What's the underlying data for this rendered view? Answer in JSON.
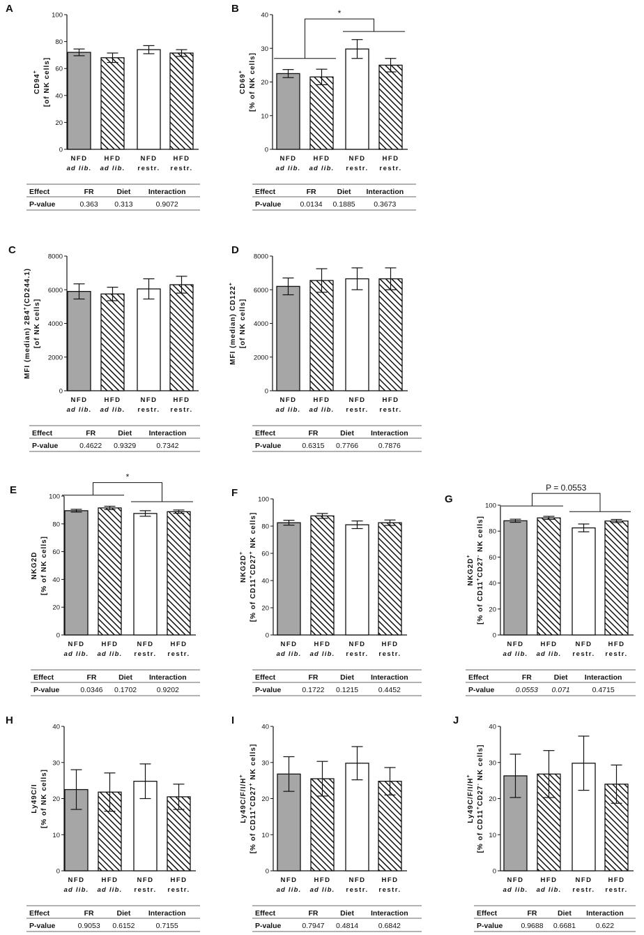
{
  "figure": {
    "bar_colors": {
      "NFD ad lib.": "#a6a6a6",
      "HFD ad lib.": "#a6a6a6",
      "NFD restr.": "#ffffff",
      "HFD restr.": "#ffffff"
    },
    "hatch": [
      false,
      true,
      false,
      true
    ],
    "table_headers": [
      "Effect",
      "FR",
      "Diet",
      "Interaction"
    ],
    "table_row_label": "P-value"
  },
  "chart_data": [
    {
      "id": "A",
      "type": "bar",
      "title": "A",
      "categories": [
        "NFD ad lib.",
        "HFD ad lib.",
        "NFD restr.",
        "HFD restr."
      ],
      "category_lines": [
        [
          "NFD",
          "ad lib."
        ],
        [
          "HFD",
          "ad lib."
        ],
        [
          "NFD",
          "restr."
        ],
        [
          "HFD",
          "restr."
        ]
      ],
      "ylabel": [
        "CD94",
        "[of NK cells]"
      ],
      "ylabel_sup": "+",
      "ylim": [
        0,
        100
      ],
      "yticks": [
        0,
        20,
        40,
        60,
        80,
        100
      ],
      "values": [
        72,
        68,
        74,
        71.5
      ],
      "errors": [
        2.5,
        3.5,
        3,
        2.5
      ],
      "significance": null,
      "pvalues": {
        "FR": "0.363",
        "Diet": "0.313",
        "Interaction": "0.9072"
      }
    },
    {
      "id": "B",
      "type": "bar",
      "title": "B",
      "categories": [
        "NFD ad lib.",
        "HFD ad lib.",
        "NFD restr.",
        "HFD restr."
      ],
      "category_lines": [
        [
          "NFD",
          "ad lib."
        ],
        [
          "HFD",
          "ad lib."
        ],
        [
          "NFD",
          "restr."
        ],
        [
          "HFD",
          "restr."
        ]
      ],
      "ylabel": [
        "CD69",
        "[% of NK cells]"
      ],
      "ylabel_sup": "+",
      "ylim": [
        0,
        40
      ],
      "yticks": [
        0,
        10,
        20,
        30,
        40
      ],
      "values": [
        22.5,
        21.5,
        29.8,
        25
      ],
      "errors": [
        1.2,
        2.3,
        2.8,
        2
      ],
      "significance": "*",
      "pvalues": {
        "FR": "0.0134",
        "Diet": "0.1885",
        "Interaction": "0.3673"
      }
    },
    {
      "id": "C",
      "type": "bar",
      "title": "C",
      "categories": [
        "NFD ad lib.",
        "HFD ad lib.",
        "NFD restr.",
        "HFD restr."
      ],
      "category_lines": [
        [
          "NFD",
          "ad lib."
        ],
        [
          "HFD",
          "ad lib."
        ],
        [
          "NFD",
          "restr."
        ],
        [
          "HFD",
          "restr."
        ]
      ],
      "ylabel": [
        "MFI (median) 2B4",
        "(CD244.1)",
        "[of NK cells]"
      ],
      "ylabel_sup": "+",
      "ylim": [
        0,
        8000
      ],
      "yticks": [
        0,
        2000,
        4000,
        6000,
        8000
      ],
      "values": [
        5900,
        5750,
        6050,
        6300
      ],
      "errors": [
        450,
        400,
        600,
        500
      ],
      "significance": null,
      "pvalues": {
        "FR": "0.4622",
        "Diet": "0.9329",
        "Interaction": "0.7342"
      }
    },
    {
      "id": "D",
      "type": "bar",
      "title": "D",
      "categories": [
        "NFD ad lib.",
        "HFD ad lib.",
        "NFD restr.",
        "HFD restr."
      ],
      "category_lines": [
        [
          "NFD",
          "ad lib."
        ],
        [
          "HFD",
          "ad lib."
        ],
        [
          "NFD",
          "restr."
        ],
        [
          "HFD",
          "restr."
        ]
      ],
      "ylabel": [
        "MFI (median) CD122",
        "[of NK cells]"
      ],
      "ylabel_sup": "+",
      "ylim": [
        0,
        8000
      ],
      "yticks": [
        0,
        2000,
        4000,
        6000,
        8000
      ],
      "values": [
        6200,
        6550,
        6650,
        6650
      ],
      "errors": [
        500,
        700,
        650,
        650
      ],
      "significance": null,
      "pvalues": {
        "FR": "0.6315",
        "Diet": "0.7766",
        "Interaction": "0.7876"
      }
    },
    {
      "id": "E",
      "type": "bar",
      "title": "E",
      "categories": [
        "NFD ad lib.",
        "HFD ad lib.",
        "NFD restr.",
        "HFD restr."
      ],
      "category_lines": [
        [
          "NFD",
          "ad lib."
        ],
        [
          "HFD",
          "ad lib."
        ],
        [
          "NFD",
          "restr."
        ],
        [
          "HFD",
          "restr."
        ]
      ],
      "ylabel": [
        "NKG2D",
        "[% of NK cells]"
      ],
      "ylabel_sup": "",
      "ylim": [
        0,
        100
      ],
      "yticks": [
        0,
        20,
        40,
        60,
        80,
        100
      ],
      "values": [
        89.5,
        91.5,
        87.5,
        88.8
      ],
      "errors": [
        1,
        1.2,
        2,
        1.2
      ],
      "significance": "*",
      "pvalues": {
        "FR": "0.0346",
        "Diet": "0.1702",
        "Interaction": "0.9202"
      }
    },
    {
      "id": "F",
      "type": "bar",
      "title": "F",
      "categories": [
        "NFD ad lib.",
        "HFD ad lib.",
        "NFD restr.",
        "HFD restr."
      ],
      "category_lines": [
        [
          "NFD",
          "ad lib."
        ],
        [
          "HFD",
          "ad lib."
        ],
        [
          "NFD",
          "restr."
        ],
        [
          "HFD",
          "restr."
        ]
      ],
      "ylabel": [
        "NKG2D",
        "[% of CD11",
        "CD27",
        " NK cells]"
      ],
      "ylabel_sup": "+",
      "ylim": [
        0,
        100
      ],
      "yticks": [
        0,
        20,
        40,
        60,
        80,
        100
      ],
      "values": [
        82.5,
        87.5,
        81,
        82.5
      ],
      "errors": [
        1.8,
        1.8,
        2.8,
        2
      ],
      "significance": null,
      "pvalues": {
        "FR": "0.1722",
        "Diet": "0.1215",
        "Interaction": "0.4452"
      }
    },
    {
      "id": "G",
      "type": "bar",
      "title": "G",
      "categories": [
        "NFD ad lib.",
        "HFD ad lib.",
        "NFD restr.",
        "HFD restr."
      ],
      "category_lines": [
        [
          "NFD",
          "ad lib."
        ],
        [
          "HFD",
          "ad lib."
        ],
        [
          "NFD",
          "restr."
        ],
        [
          "HFD",
          "restr."
        ]
      ],
      "ylabel": [
        "NKG2D",
        "[% of CD11",
        "CD27",
        " NK cells]"
      ],
      "ylabel_sup": "+",
      "ylim": [
        0,
        100
      ],
      "yticks": [
        0,
        20,
        40,
        60,
        80,
        100
      ],
      "values": [
        88,
        90.2,
        82.5,
        87.8
      ],
      "errors": [
        1.2,
        1.2,
        3,
        1.2
      ],
      "significance": "P = 0.0553",
      "pvalues": {
        "FR": "0.0553",
        "Diet": "0.071",
        "Interaction": "0.4715"
      }
    },
    {
      "id": "H",
      "type": "bar",
      "title": "H",
      "categories": [
        "NFD ad lib.",
        "HFD ad lib.",
        "NFD restr.",
        "HFD restr."
      ],
      "category_lines": [
        [
          "NFD",
          "ad lib."
        ],
        [
          "HFD",
          "ad lib."
        ],
        [
          "NFD",
          "restr."
        ],
        [
          "HFD",
          "restr."
        ]
      ],
      "ylabel": [
        "Ly49C/I",
        "[% of NK cells]"
      ],
      "ylabel_sup": "",
      "ylim": [
        0,
        40
      ],
      "yticks": [
        0,
        10,
        20,
        30,
        40
      ],
      "values": [
        22.5,
        21.8,
        24.8,
        20.5
      ],
      "errors": [
        5.5,
        5.3,
        4.8,
        3.5
      ],
      "significance": null,
      "pvalues": {
        "FR": "0.9053",
        "Diet": "0.6152",
        "Interaction": "0.7155"
      }
    },
    {
      "id": "I",
      "type": "bar",
      "title": "I",
      "categories": [
        "NFD ad lib.",
        "HFD ad lib.",
        "NFD restr.",
        "HFD restr."
      ],
      "category_lines": [
        [
          "NFD",
          "ad lib."
        ],
        [
          "HFD",
          "ad lib."
        ],
        [
          "NFD",
          "restr."
        ],
        [
          "HFD",
          "restr."
        ]
      ],
      "ylabel": [
        "Ly49C/F/I/H",
        "[% of CD11",
        "CD27",
        " NK cells]"
      ],
      "ylabel_sup": "+",
      "ylim": [
        0,
        40
      ],
      "yticks": [
        0,
        10,
        20,
        30,
        40
      ],
      "values": [
        26.8,
        25.5,
        29.8,
        24.8
      ],
      "errors": [
        4.8,
        4.8,
        4.6,
        3.8
      ],
      "significance": null,
      "pvalues": {
        "FR": "0.7947",
        "Diet": "0.4814",
        "Interaction": "0.6842"
      }
    },
    {
      "id": "J",
      "type": "bar",
      "title": "J",
      "categories": [
        "NFD ad lib.",
        "HFD ad lib.",
        "NFD restr.",
        "HFD restr."
      ],
      "category_lines": [
        [
          "NFD",
          "ad lib."
        ],
        [
          "HFD",
          "ad lib."
        ],
        [
          "NFD",
          "restr."
        ],
        [
          "HFD",
          "restr."
        ]
      ],
      "ylabel": [
        "Ly49C/F/I/H",
        "[% of CD11",
        "CD27",
        " NK cells]"
      ],
      "ylabel_sup": "+",
      "ylim": [
        0,
        40
      ],
      "yticks": [
        0,
        10,
        20,
        30,
        40
      ],
      "values": [
        26.3,
        26.8,
        29.8,
        24
      ],
      "errors": [
        6,
        6.5,
        7.5,
        5.3
      ],
      "significance": null,
      "pvalues": {
        "FR": "0.9688",
        "Diet": "0.6681",
        "Interaction": "0.622"
      }
    }
  ]
}
